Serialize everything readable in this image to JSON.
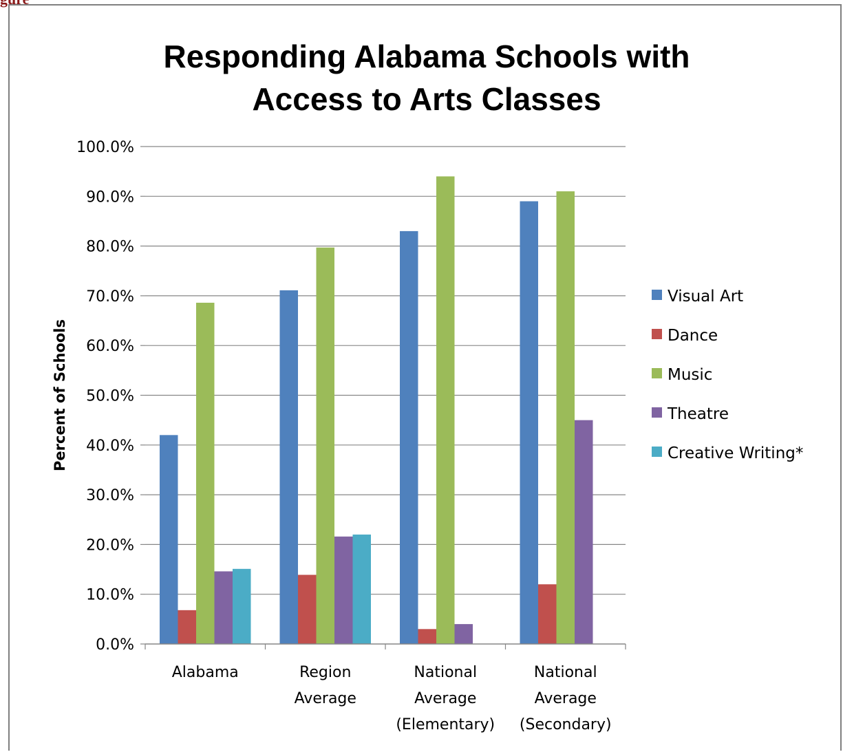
{
  "page_label": "gure",
  "chart_data": {
    "type": "bar",
    "title_lines": [
      "Responding Alabama Schools with",
      "Access to Arts Classes"
    ],
    "ylabel": "Percent of Schools",
    "xlabel": "",
    "ylim": [
      0,
      100
    ],
    "yticks": [
      0,
      10,
      20,
      30,
      40,
      50,
      60,
      70,
      80,
      90,
      100
    ],
    "ytick_labels": [
      "0.0%",
      "10.0%",
      "20.0%",
      "30.0%",
      "40.0%",
      "50.0%",
      "60.0%",
      "70.0%",
      "80.0%",
      "90.0%",
      "100.0%"
    ],
    "grid": true,
    "legend_position": "right",
    "categories": [
      [
        "Alabama"
      ],
      [
        "Region",
        "Average"
      ],
      [
        "National",
        "Average",
        "(Elementary)"
      ],
      [
        "National",
        "Average",
        "(Secondary)"
      ]
    ],
    "series": [
      {
        "name": "Visual Art",
        "color": "#4f81bd",
        "values": [
          42.0,
          71.1,
          83.0,
          89.0
        ]
      },
      {
        "name": "Dance",
        "color": "#c0504d",
        "values": [
          6.8,
          13.9,
          3.0,
          12.0
        ]
      },
      {
        "name": "Music",
        "color": "#9bbb59",
        "values": [
          68.6,
          79.7,
          94.0,
          91.0
        ]
      },
      {
        "name": "Theatre",
        "color": "#8064a2",
        "values": [
          14.6,
          21.6,
          4.0,
          45.0
        ]
      },
      {
        "name": "Creative Writing*",
        "color": "#4bacc6",
        "values": [
          15.1,
          22.0,
          null,
          null
        ]
      }
    ]
  }
}
